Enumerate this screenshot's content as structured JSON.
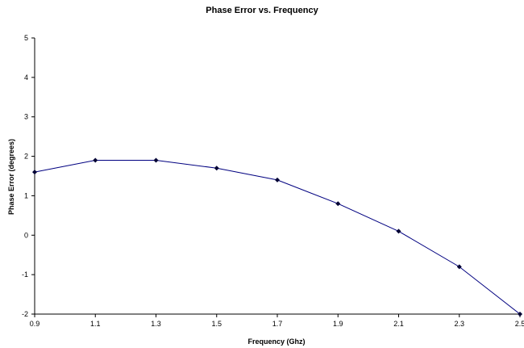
{
  "chart_data": {
    "type": "line",
    "title": "Phase Error vs. Frequency",
    "xlabel": "Frequency (Ghz)",
    "ylabel": "Phase Error (degrees)",
    "x": [
      0.9,
      1.1,
      1.3,
      1.5,
      1.7,
      1.9,
      2.1,
      2.3,
      2.5
    ],
    "series": [
      {
        "values": [
          1.6,
          1.9,
          1.9,
          1.7,
          1.4,
          0.8,
          0.1,
          -0.8,
          -2.0
        ]
      }
    ],
    "xlim": [
      0.9,
      2.5
    ],
    "ylim": [
      -2,
      5
    ],
    "xticks": [
      "0.9",
      "1.1",
      "1.3",
      "1.5",
      "1.7",
      "1.9",
      "2.1",
      "2.3",
      "2.5"
    ],
    "yticks": [
      "-2",
      "-1",
      "0",
      "1",
      "2",
      "3",
      "4",
      "5"
    ],
    "grid": false,
    "legend": "none",
    "line_color": "#000080",
    "marker_color": "#000033"
  }
}
